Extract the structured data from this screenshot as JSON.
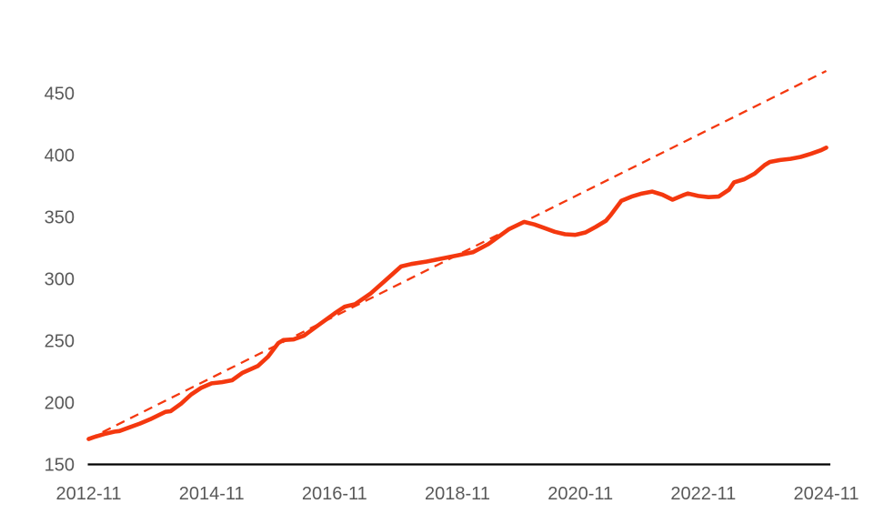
{
  "chart_data": {
    "type": "line",
    "title": "",
    "xlabel": "",
    "ylabel": "",
    "x_unit_months_since": "2012-11",
    "x_ticks": [
      {
        "month": 0,
        "label": "2012-11"
      },
      {
        "month": 24,
        "label": "2014-11"
      },
      {
        "month": 48,
        "label": "2016-11"
      },
      {
        "month": 72,
        "label": "2018-11"
      },
      {
        "month": 96,
        "label": "2020-11"
      },
      {
        "month": 120,
        "label": "2022-11"
      },
      {
        "month": 144,
        "label": "2024-11"
      }
    ],
    "y_ticks": [
      150,
      200,
      250,
      300,
      350,
      400,
      450
    ],
    "ylim": [
      150,
      475
    ],
    "xlim_months": [
      0,
      144
    ],
    "grid": false,
    "legend": false,
    "axis_label_color": "#595959",
    "axis_line_color": "#000000",
    "accent_color": "#F4380F",
    "series": [
      {
        "name": "observed-values",
        "line_style": "solid",
        "color": "#F4380F",
        "stroke_width": 4.6,
        "points": [
          [
            0,
            170.5
          ],
          [
            1,
            172
          ],
          [
            3,
            174.5
          ],
          [
            5,
            176.5
          ],
          [
            6,
            177
          ],
          [
            8,
            180
          ],
          [
            10,
            183
          ],
          [
            12,
            186.5
          ],
          [
            14,
            190.5
          ],
          [
            15,
            192.5
          ],
          [
            16,
            193
          ],
          [
            18,
            199
          ],
          [
            20,
            206.5
          ],
          [
            22,
            212
          ],
          [
            24,
            215.5
          ],
          [
            26,
            216.5
          ],
          [
            28,
            218
          ],
          [
            30,
            224
          ],
          [
            33,
            229.5
          ],
          [
            35,
            237
          ],
          [
            37,
            248
          ],
          [
            38,
            250.5
          ],
          [
            40,
            251
          ],
          [
            42,
            254
          ],
          [
            45,
            263
          ],
          [
            48,
            272
          ],
          [
            50,
            277.5
          ],
          [
            52,
            279.5
          ],
          [
            55,
            288
          ],
          [
            58,
            299
          ],
          [
            61,
            310
          ],
          [
            63,
            312
          ],
          [
            66,
            314
          ],
          [
            69,
            316.5
          ],
          [
            72,
            319
          ],
          [
            75,
            321.5
          ],
          [
            78,
            328
          ],
          [
            80,
            334
          ],
          [
            82,
            340
          ],
          [
            85,
            346
          ],
          [
            87,
            344
          ],
          [
            89,
            341
          ],
          [
            91,
            338
          ],
          [
            93,
            336
          ],
          [
            95,
            335.5
          ],
          [
            97,
            337.5
          ],
          [
            99,
            342
          ],
          [
            101,
            347
          ],
          [
            102,
            352
          ],
          [
            104,
            363
          ],
          [
            106,
            366.5
          ],
          [
            108,
            369
          ],
          [
            110,
            370.5
          ],
          [
            112,
            368
          ],
          [
            114,
            364
          ],
          [
            116,
            367.5
          ],
          [
            117,
            369
          ],
          [
            119,
            367
          ],
          [
            121,
            366
          ],
          [
            123,
            366.5
          ],
          [
            125,
            372
          ],
          [
            126,
            378
          ],
          [
            128,
            380.5
          ],
          [
            130,
            385
          ],
          [
            132,
            392
          ],
          [
            133,
            394.5
          ],
          [
            135,
            396
          ],
          [
            137,
            397
          ],
          [
            139,
            398.5
          ],
          [
            141,
            401
          ],
          [
            143,
            404
          ],
          [
            144,
            406
          ]
        ]
      },
      {
        "name": "linear-trend",
        "line_style": "dashed",
        "color": "#F4380F",
        "stroke_width": 2.3,
        "dash": [
          10,
          7
        ],
        "points": [
          [
            0,
            170.5
          ],
          [
            144,
            468
          ]
        ]
      }
    ]
  }
}
